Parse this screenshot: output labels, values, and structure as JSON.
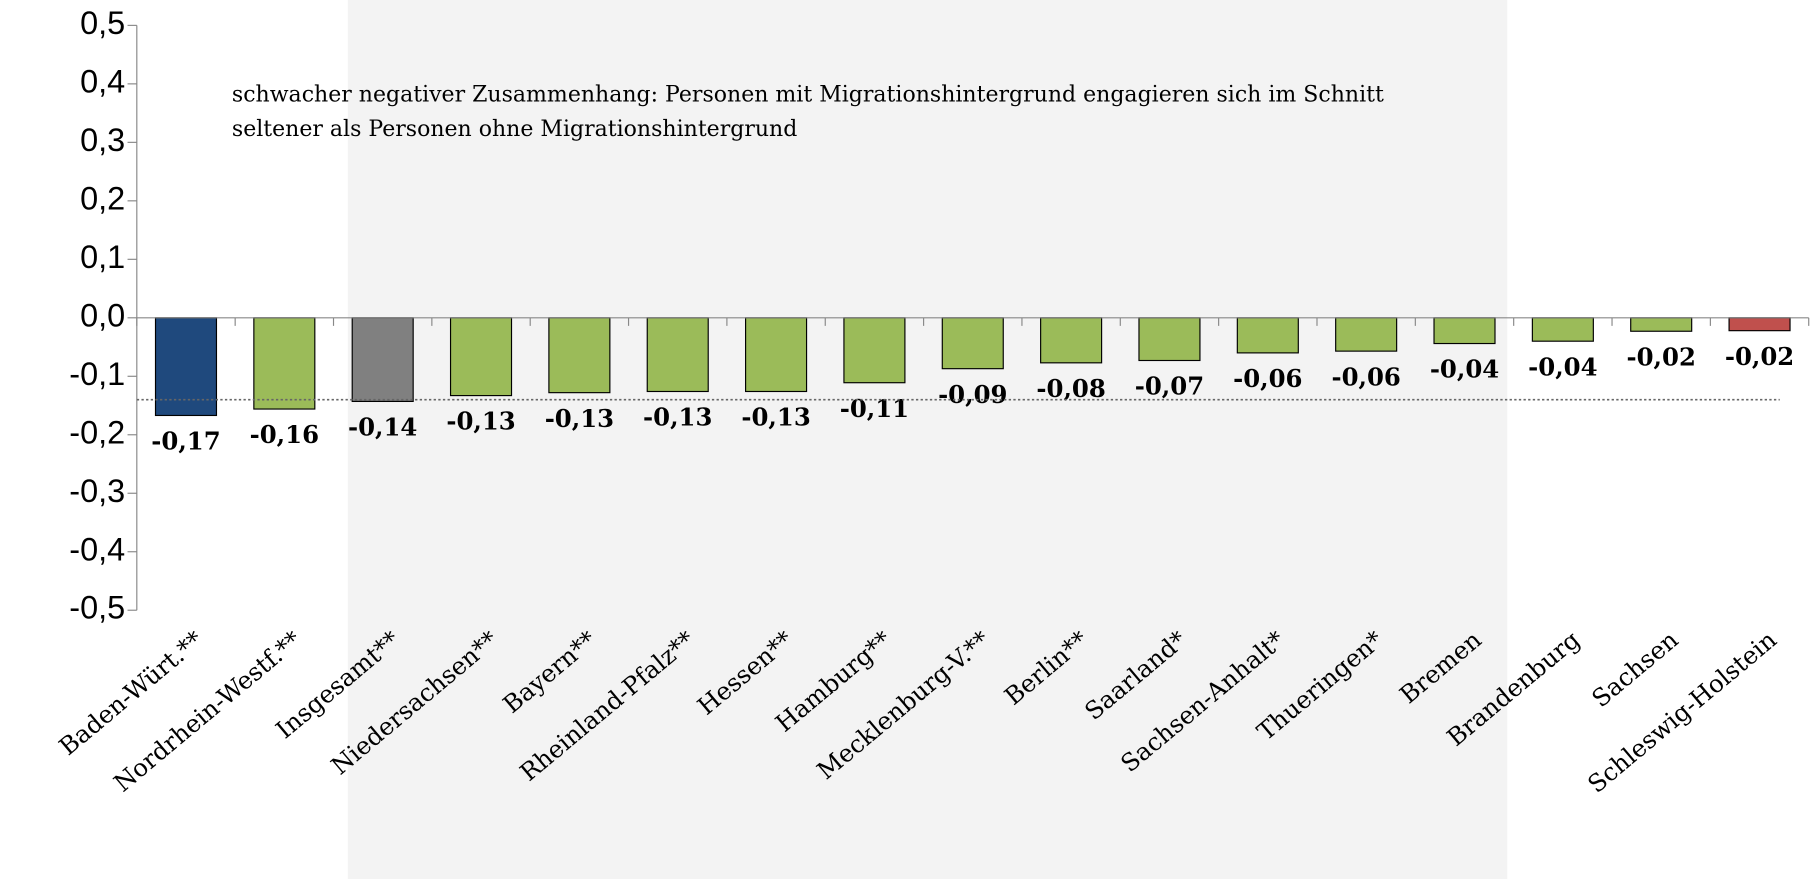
{
  "chart_data": {
    "type": "bar",
    "annotation": [
      "schwacher negativer Zusammenhang: Personen mit Migrationshintergrund engagieren sich im Schnitt",
      "seltener als Personen ohne Migrationshintergrund"
    ],
    "categories": [
      "Baden-Würt.**",
      "Nordrhein-Westf.**",
      "Insgesamt**",
      "Niedersachsen**",
      "Bayern**",
      "Rheinland-Pfalz**",
      "Hessen**",
      "Hamburg**",
      "Mecklenburg-V.**",
      "Berlin**",
      "Saarland*",
      "Sachsen-Anhalt*",
      "Thueringen*",
      "Bremen",
      "Brandenburg",
      "Sachsen",
      "Schleswig-Holstein"
    ],
    "values": [
      -0.167,
      -0.156,
      -0.143,
      -0.133,
      -0.128,
      -0.126,
      -0.126,
      -0.111,
      -0.087,
      -0.077,
      -0.073,
      -0.06,
      -0.057,
      -0.044,
      -0.04,
      -0.023,
      -0.022
    ],
    "value_labels": [
      "-0,17",
      "-0,16",
      "-0,14",
      "-0,13",
      "-0,13",
      "-0,13",
      "-0,13",
      "-0,11",
      "-0,09",
      "-0,08",
      "-0,07",
      "-0,06",
      "-0,06",
      "-0,04",
      "-0,04",
      "-0,02",
      "-0,02"
    ],
    "colors": [
      "#1f497d",
      "#9bbb59",
      "#808080",
      "#9bbb59",
      "#9bbb59",
      "#9bbb59",
      "#9bbb59",
      "#9bbb59",
      "#9bbb59",
      "#9bbb59",
      "#9bbb59",
      "#9bbb59",
      "#9bbb59",
      "#9bbb59",
      "#9bbb59",
      "#9bbb59",
      "#c0504d"
    ],
    "reference_line": -0.14,
    "ylim": [
      -0.5,
      0.5
    ],
    "yticks": [
      {
        "value": 0.5,
        "label": "0,5"
      },
      {
        "value": 0.4,
        "label": "0,4"
      },
      {
        "value": 0.3,
        "label": "0,3"
      },
      {
        "value": 0.2,
        "label": "0,2"
      },
      {
        "value": 0.1,
        "label": "0,1"
      },
      {
        "value": 0,
        "label": "0,0"
      },
      {
        "value": -0.1,
        "label": "-0,1"
      },
      {
        "value": -0.2,
        "label": "-0,2"
      },
      {
        "value": -0.3,
        "label": "-0,3"
      },
      {
        "value": -0.4,
        "label": "-0,4"
      },
      {
        "value": -0.5,
        "label": "-0,5"
      }
    ]
  }
}
